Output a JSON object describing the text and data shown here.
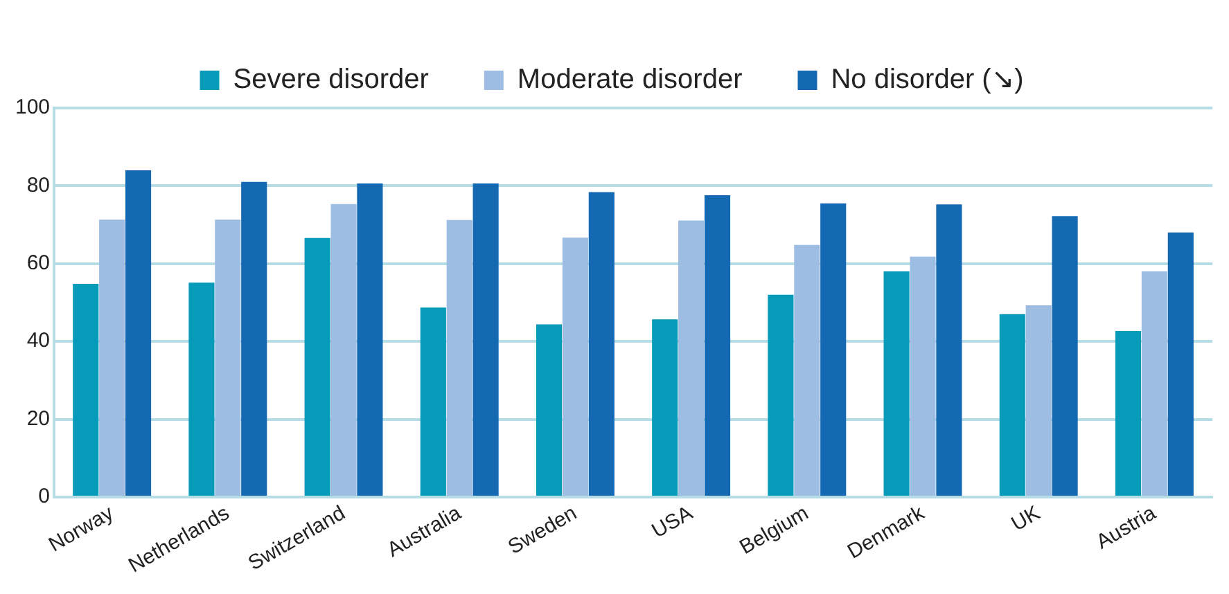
{
  "chart_data": {
    "type": "bar",
    "categories": [
      "Norway",
      "Netherlands",
      "Switzerland",
      "Australia",
      "Sweden",
      "USA",
      "Belgium",
      "Denmark",
      "UK",
      "Austria"
    ],
    "series": [
      {
        "name": "Severe disorder",
        "color": "#069bb9",
        "values": [
          54.8,
          55.1,
          66.6,
          48.7,
          44.4,
          45.7,
          52.0,
          58.0,
          47.0,
          42.7
        ]
      },
      {
        "name": "Moderate disorder",
        "color": "#9dbde3",
        "values": [
          71.3,
          71.3,
          75.3,
          71.2,
          66.7,
          71.1,
          64.8,
          61.8,
          49.3,
          58.0
        ]
      },
      {
        "name": "No disorder (↘)",
        "color": "#1569b3",
        "values": [
          84.0,
          81.0,
          80.6,
          80.6,
          78.4,
          77.6,
          75.5,
          75.2,
          72.2,
          68.0
        ]
      }
    ],
    "ylim": [
      0,
      100
    ],
    "yticks": [
      0,
      20,
      40,
      60,
      80,
      100
    ],
    "grid": "y",
    "legend": "top"
  }
}
